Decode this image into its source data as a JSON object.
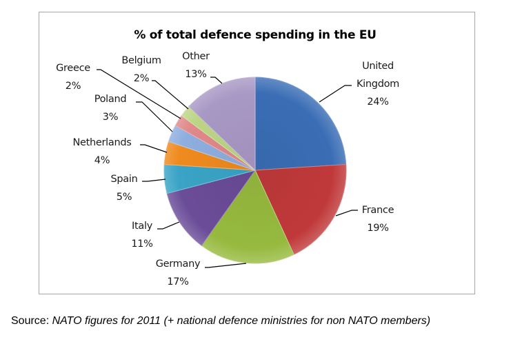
{
  "chart_data": {
    "type": "pie",
    "title": "% of total defence spending in the EU",
    "start_angle": "12 o'clock",
    "direction": "clockwise",
    "slices": [
      {
        "label": "United Kingdom",
        "label_lines": [
          "United",
          "Kingdom"
        ],
        "value": 24,
        "value_label": "24%",
        "color": "#3a6db5"
      },
      {
        "label": "France",
        "label_lines": [
          "France"
        ],
        "value": 19,
        "value_label": "19%",
        "color": "#c0393a"
      },
      {
        "label": "Germany",
        "label_lines": [
          "Germany"
        ],
        "value": 17,
        "value_label": "17%",
        "color": "#96b93e"
      },
      {
        "label": "Italy",
        "label_lines": [
          "Italy"
        ],
        "value": 11,
        "value_label": "11%",
        "color": "#6a4c98"
      },
      {
        "label": "Spain",
        "label_lines": [
          "Spain"
        ],
        "value": 5,
        "value_label": "5%",
        "color": "#3aa4c6"
      },
      {
        "label": "Netherlands",
        "label_lines": [
          "Netherlands"
        ],
        "value": 4,
        "value_label": "4%",
        "color": "#ef8a1e"
      },
      {
        "label": "Poland",
        "label_lines": [
          "Poland"
        ],
        "value": 3,
        "value_label": "3%",
        "color": "#8eaedf"
      },
      {
        "label": "Greece",
        "label_lines": [
          "Greece"
        ],
        "value": 2,
        "value_label": "2%",
        "color": "#e0888a"
      },
      {
        "label": "Belgium",
        "label_lines": [
          "Belgium"
        ],
        "value": 2,
        "value_label": "2%",
        "color": "#bcd585"
      },
      {
        "label": "Other",
        "label_lines": [
          "Other"
        ],
        "value": 13,
        "value_label": "13%",
        "color": "#a898c4"
      }
    ],
    "legend": "none (data labels with leader lines)"
  },
  "source": {
    "prefix": "Source:",
    "text": "NATO figures for 2011 (+ national defence ministries for non NATO members)"
  }
}
